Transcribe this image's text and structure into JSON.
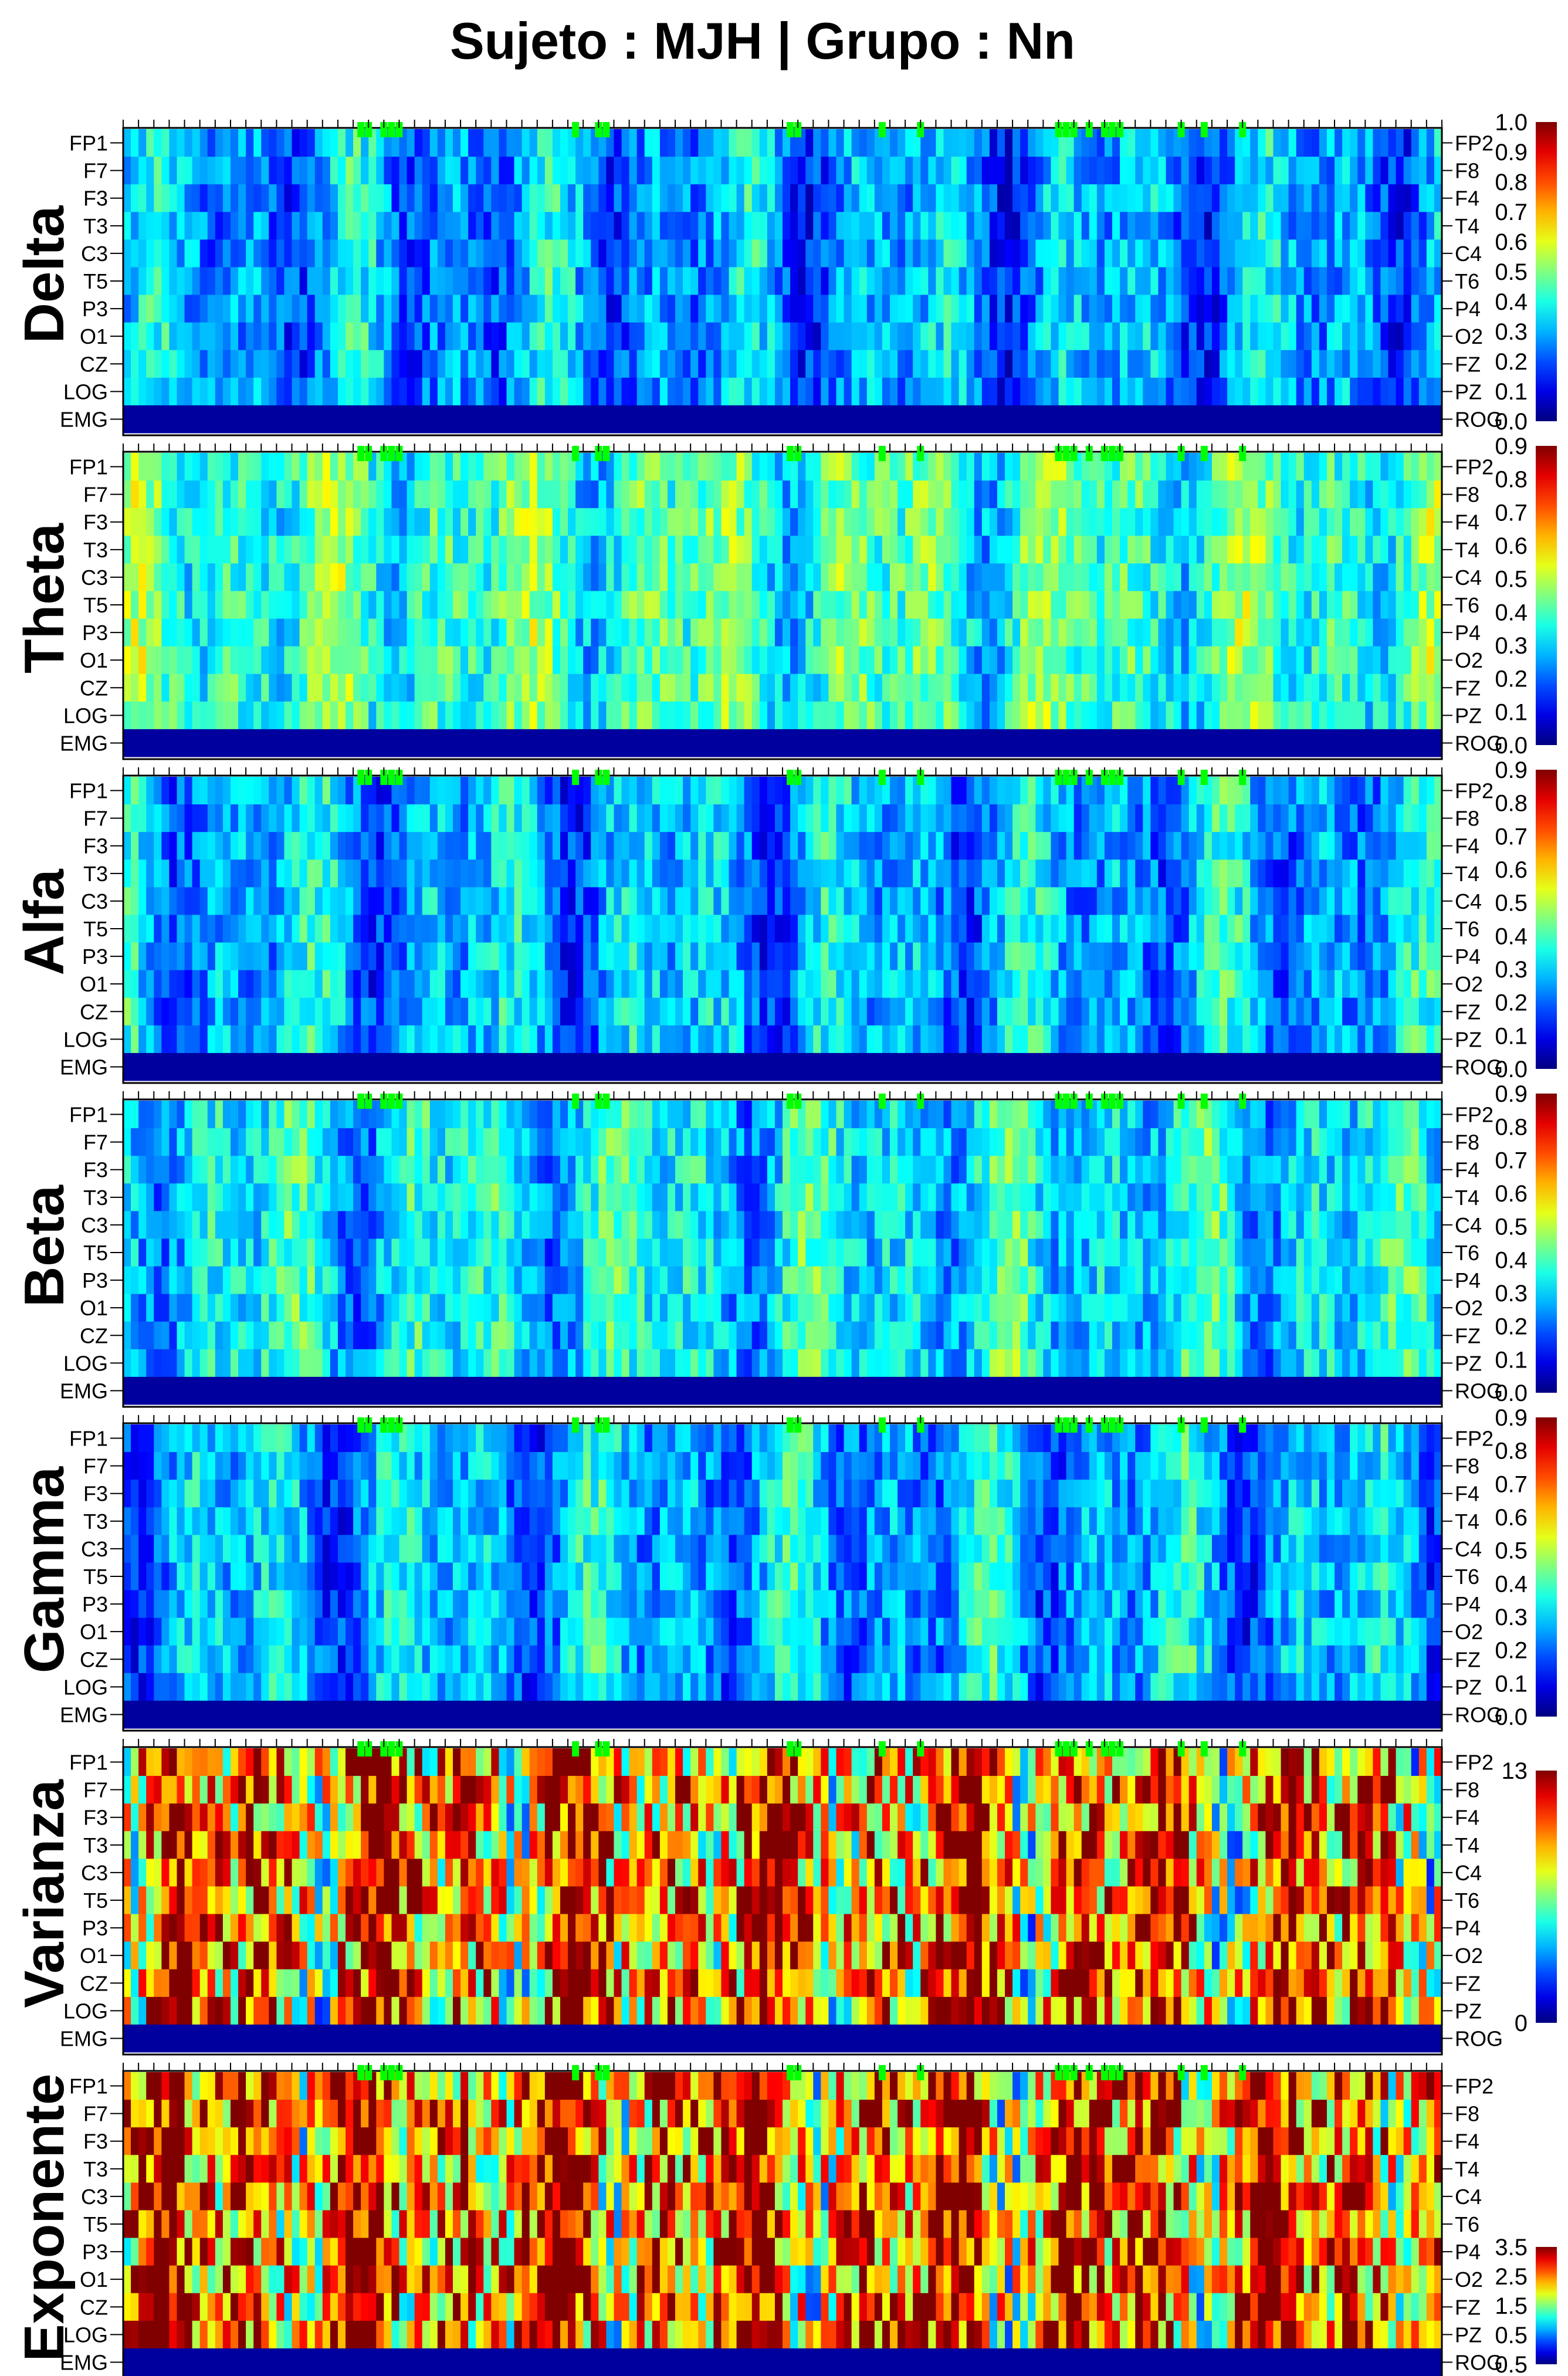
{
  "chart_data": {
    "type": "heatmap",
    "title": "Sujeto : MJH  | Grupo :  Nn",
    "xlabel": "",
    "ylabel": "",
    "x_ticks": [
      0,
      1,
      2,
      3,
      4,
      5,
      6,
      7,
      8
    ],
    "xlim": [
      0,
      8.6
    ],
    "left_channel_labels": [
      "FP1",
      "F7",
      "F3",
      "T3",
      "C3",
      "T5",
      "P3",
      "O1",
      "CZ",
      "LOG",
      "EMG"
    ],
    "right_channel_labels": [
      "FP2",
      "F8",
      "F4",
      "T4",
      "C4",
      "T6",
      "P4",
      "O2",
      "FZ",
      "PZ",
      "ROG"
    ],
    "marker_color": "#00ff00",
    "colormap": "jet",
    "panels": [
      {
        "band": "Delta",
        "cbar_ticks": [
          "0.0",
          "0.1",
          "0.2",
          "0.3",
          "0.4",
          "0.5",
          "0.6",
          "0.7",
          "0.8",
          "0.9",
          "1.0"
        ],
        "value_range": [
          0,
          1.0
        ],
        "intensity": 0.18
      },
      {
        "band": "Theta",
        "cbar_ticks": [
          "0.0",
          "0.1",
          "0.2",
          "0.3",
          "0.4",
          "0.5",
          "0.6",
          "0.7",
          "0.8",
          "0.9"
        ],
        "value_range": [
          0,
          0.9
        ],
        "intensity": 0.33
      },
      {
        "band": "Alfa",
        "cbar_ticks": [
          "0.0",
          "0.1",
          "0.2",
          "0.3",
          "0.4",
          "0.5",
          "0.6",
          "0.7",
          "0.8",
          "0.9"
        ],
        "value_range": [
          0,
          0.9
        ],
        "intensity": 0.2
      },
      {
        "band": "Beta",
        "cbar_ticks": [
          "0.0",
          "0.1",
          "0.2",
          "0.3",
          "0.4",
          "0.5",
          "0.6",
          "0.7",
          "0.8",
          "0.9"
        ],
        "value_range": [
          0,
          0.9
        ],
        "intensity": 0.26
      },
      {
        "band": "Gamma",
        "cbar_ticks": [
          "0.0",
          "0.1",
          "0.2",
          "0.3",
          "0.4",
          "0.5",
          "0.6",
          "0.7",
          "0.8",
          "0.9"
        ],
        "value_range": [
          0,
          0.9
        ],
        "intensity": 0.2
      },
      {
        "band": "Varianza",
        "cbar_ticks": [
          "0",
          "13"
        ],
        "value_range": [
          0,
          13
        ],
        "intensity": 0.55
      },
      {
        "band": "Exponente",
        "cbar_ticks": [
          "0.5",
          "0.5",
          "1.5",
          "2.5",
          "3.5"
        ],
        "value_range": [
          0.5,
          3.5
        ],
        "intensity": 0.58
      }
    ]
  }
}
